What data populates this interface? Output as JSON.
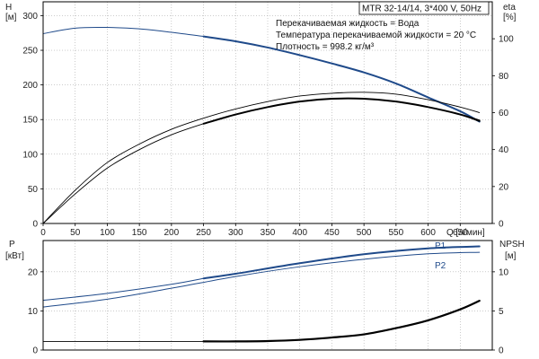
{
  "model_label": "MTR 32-14/14, 3*400 V, 50Hz",
  "notes": [
    "Перекачиваемая жидкость = Вода",
    "Температура перекачиваемой жидкости = 20 °C",
    "Плотность = 998.2 кг/м³"
  ],
  "colors": {
    "blue": "#1f4a8a",
    "black": "#000000",
    "axis": "#000000",
    "grid": "#9a9a9a"
  },
  "chart_data": [
    {
      "id": "upper",
      "type": "line",
      "xlabel": "Q [л/мин]",
      "x_ticks": [
        0,
        50,
        100,
        150,
        200,
        250,
        300,
        350,
        400,
        450,
        500,
        550,
        600,
        650
      ],
      "xlim": [
        0,
        700
      ],
      "y_left": {
        "title_lines": [
          "H",
          "[м]"
        ],
        "lim": [
          0,
          320
        ],
        "ticks": [
          0,
          50,
          100,
          150,
          200,
          250,
          300
        ]
      },
      "y_right": {
        "title_lines": [
          "eta",
          "[%]"
        ],
        "lim": [
          0,
          120
        ],
        "ticks": [
          0,
          20,
          40,
          60,
          80,
          100
        ]
      },
      "grid": true,
      "series": [
        {
          "axis": "left",
          "color": "blue",
          "width": 1.0,
          "points": [
            [
              0,
              274
            ],
            [
              50,
              282
            ],
            [
              100,
              283
            ],
            [
              150,
              281
            ],
            [
              200,
              276
            ],
            [
              250,
              270
            ]
          ]
        },
        {
          "axis": "left",
          "color": "blue",
          "width": 2.0,
          "points": [
            [
              250,
              270
            ],
            [
              300,
              263
            ],
            [
              350,
              254
            ],
            [
              400,
              243
            ],
            [
              450,
              231
            ],
            [
              500,
              218
            ],
            [
              550,
              202
            ],
            [
              600,
              182
            ],
            [
              650,
              162
            ],
            [
              680,
              147
            ]
          ]
        },
        {
          "axis": "right",
          "color": "black",
          "width": 0.9,
          "points": [
            [
              0,
              0
            ],
            [
              50,
              18
            ],
            [
              100,
              33
            ],
            [
              150,
              43
            ],
            [
              200,
              51
            ],
            [
              250,
              57
            ],
            [
              300,
              62
            ],
            [
              350,
              66
            ],
            [
              400,
              69
            ],
            [
              450,
              70.5
            ],
            [
              500,
              71
            ],
            [
              550,
              70
            ],
            [
              600,
              67
            ],
            [
              650,
              63
            ],
            [
              680,
              60
            ]
          ]
        },
        {
          "axis": "right",
          "color": "black",
          "width": 0.9,
          "points": [
            [
              0,
              0
            ],
            [
              50,
              16
            ],
            [
              100,
              30
            ],
            [
              150,
              40
            ],
            [
              200,
              48
            ],
            [
              250,
              54
            ],
            [
              300,
              59
            ],
            [
              350,
              63
            ],
            [
              400,
              66
            ],
            [
              450,
              67.5
            ],
            [
              500,
              67.5
            ],
            [
              550,
              66
            ],
            [
              600,
              63
            ],
            [
              650,
              59
            ],
            [
              680,
              56
            ]
          ]
        },
        {
          "axis": "right",
          "color": "black",
          "width": 2.0,
          "points": [
            [
              250,
              54
            ],
            [
              300,
              59
            ],
            [
              350,
              63
            ],
            [
              400,
              66
            ],
            [
              450,
              67.5
            ],
            [
              500,
              67.5
            ],
            [
              550,
              66
            ],
            [
              600,
              63
            ],
            [
              650,
              59
            ],
            [
              680,
              55.5
            ]
          ]
        }
      ]
    },
    {
      "id": "lower",
      "type": "line",
      "xlim": [
        0,
        700
      ],
      "y_left": {
        "title_lines": [
          "P",
          "[кВт]"
        ],
        "lim": [
          0,
          28
        ],
        "ticks": [
          0,
          10,
          20
        ]
      },
      "y_right": {
        "title_lines": [
          "NPSH",
          "[м]"
        ],
        "lim": [
          0,
          14
        ],
        "ticks": [
          0,
          5,
          10
        ]
      },
      "grid": true,
      "series": [
        {
          "name": "P1",
          "axis": "left",
          "color": "blue",
          "width": 1.0,
          "points": [
            [
              0,
              12.7
            ],
            [
              100,
              14.5
            ],
            [
              200,
              16.8
            ],
            [
              250,
              18.3
            ]
          ]
        },
        {
          "name": "P1",
          "axis": "left",
          "color": "blue",
          "width": 2.0,
          "points": [
            [
              250,
              18.3
            ],
            [
              300,
              19.5
            ],
            [
              400,
              22.2
            ],
            [
              500,
              24.5
            ],
            [
              600,
              26.0
            ],
            [
              680,
              26.5
            ]
          ]
        },
        {
          "name": "P2",
          "axis": "left",
          "color": "blue",
          "width": 1.0,
          "points": [
            [
              0,
              11.0
            ],
            [
              100,
              13.0
            ],
            [
              200,
              15.8
            ],
            [
              300,
              18.8
            ],
            [
              400,
              21.3
            ],
            [
              500,
              23.2
            ],
            [
              600,
              24.6
            ],
            [
              680,
              25.0
            ]
          ]
        },
        {
          "axis": "right",
          "color": "black",
          "width": 0.9,
          "points": [
            [
              0,
              1.1
            ],
            [
              250,
              1.1
            ]
          ]
        },
        {
          "axis": "right",
          "color": "black",
          "width": 2.2,
          "points": [
            [
              250,
              1.1
            ],
            [
              300,
              1.1
            ],
            [
              350,
              1.15
            ],
            [
              400,
              1.3
            ],
            [
              450,
              1.6
            ],
            [
              500,
              2.0
            ],
            [
              550,
              2.8
            ],
            [
              600,
              3.8
            ],
            [
              650,
              5.2
            ],
            [
              680,
              6.3
            ]
          ]
        }
      ]
    }
  ]
}
